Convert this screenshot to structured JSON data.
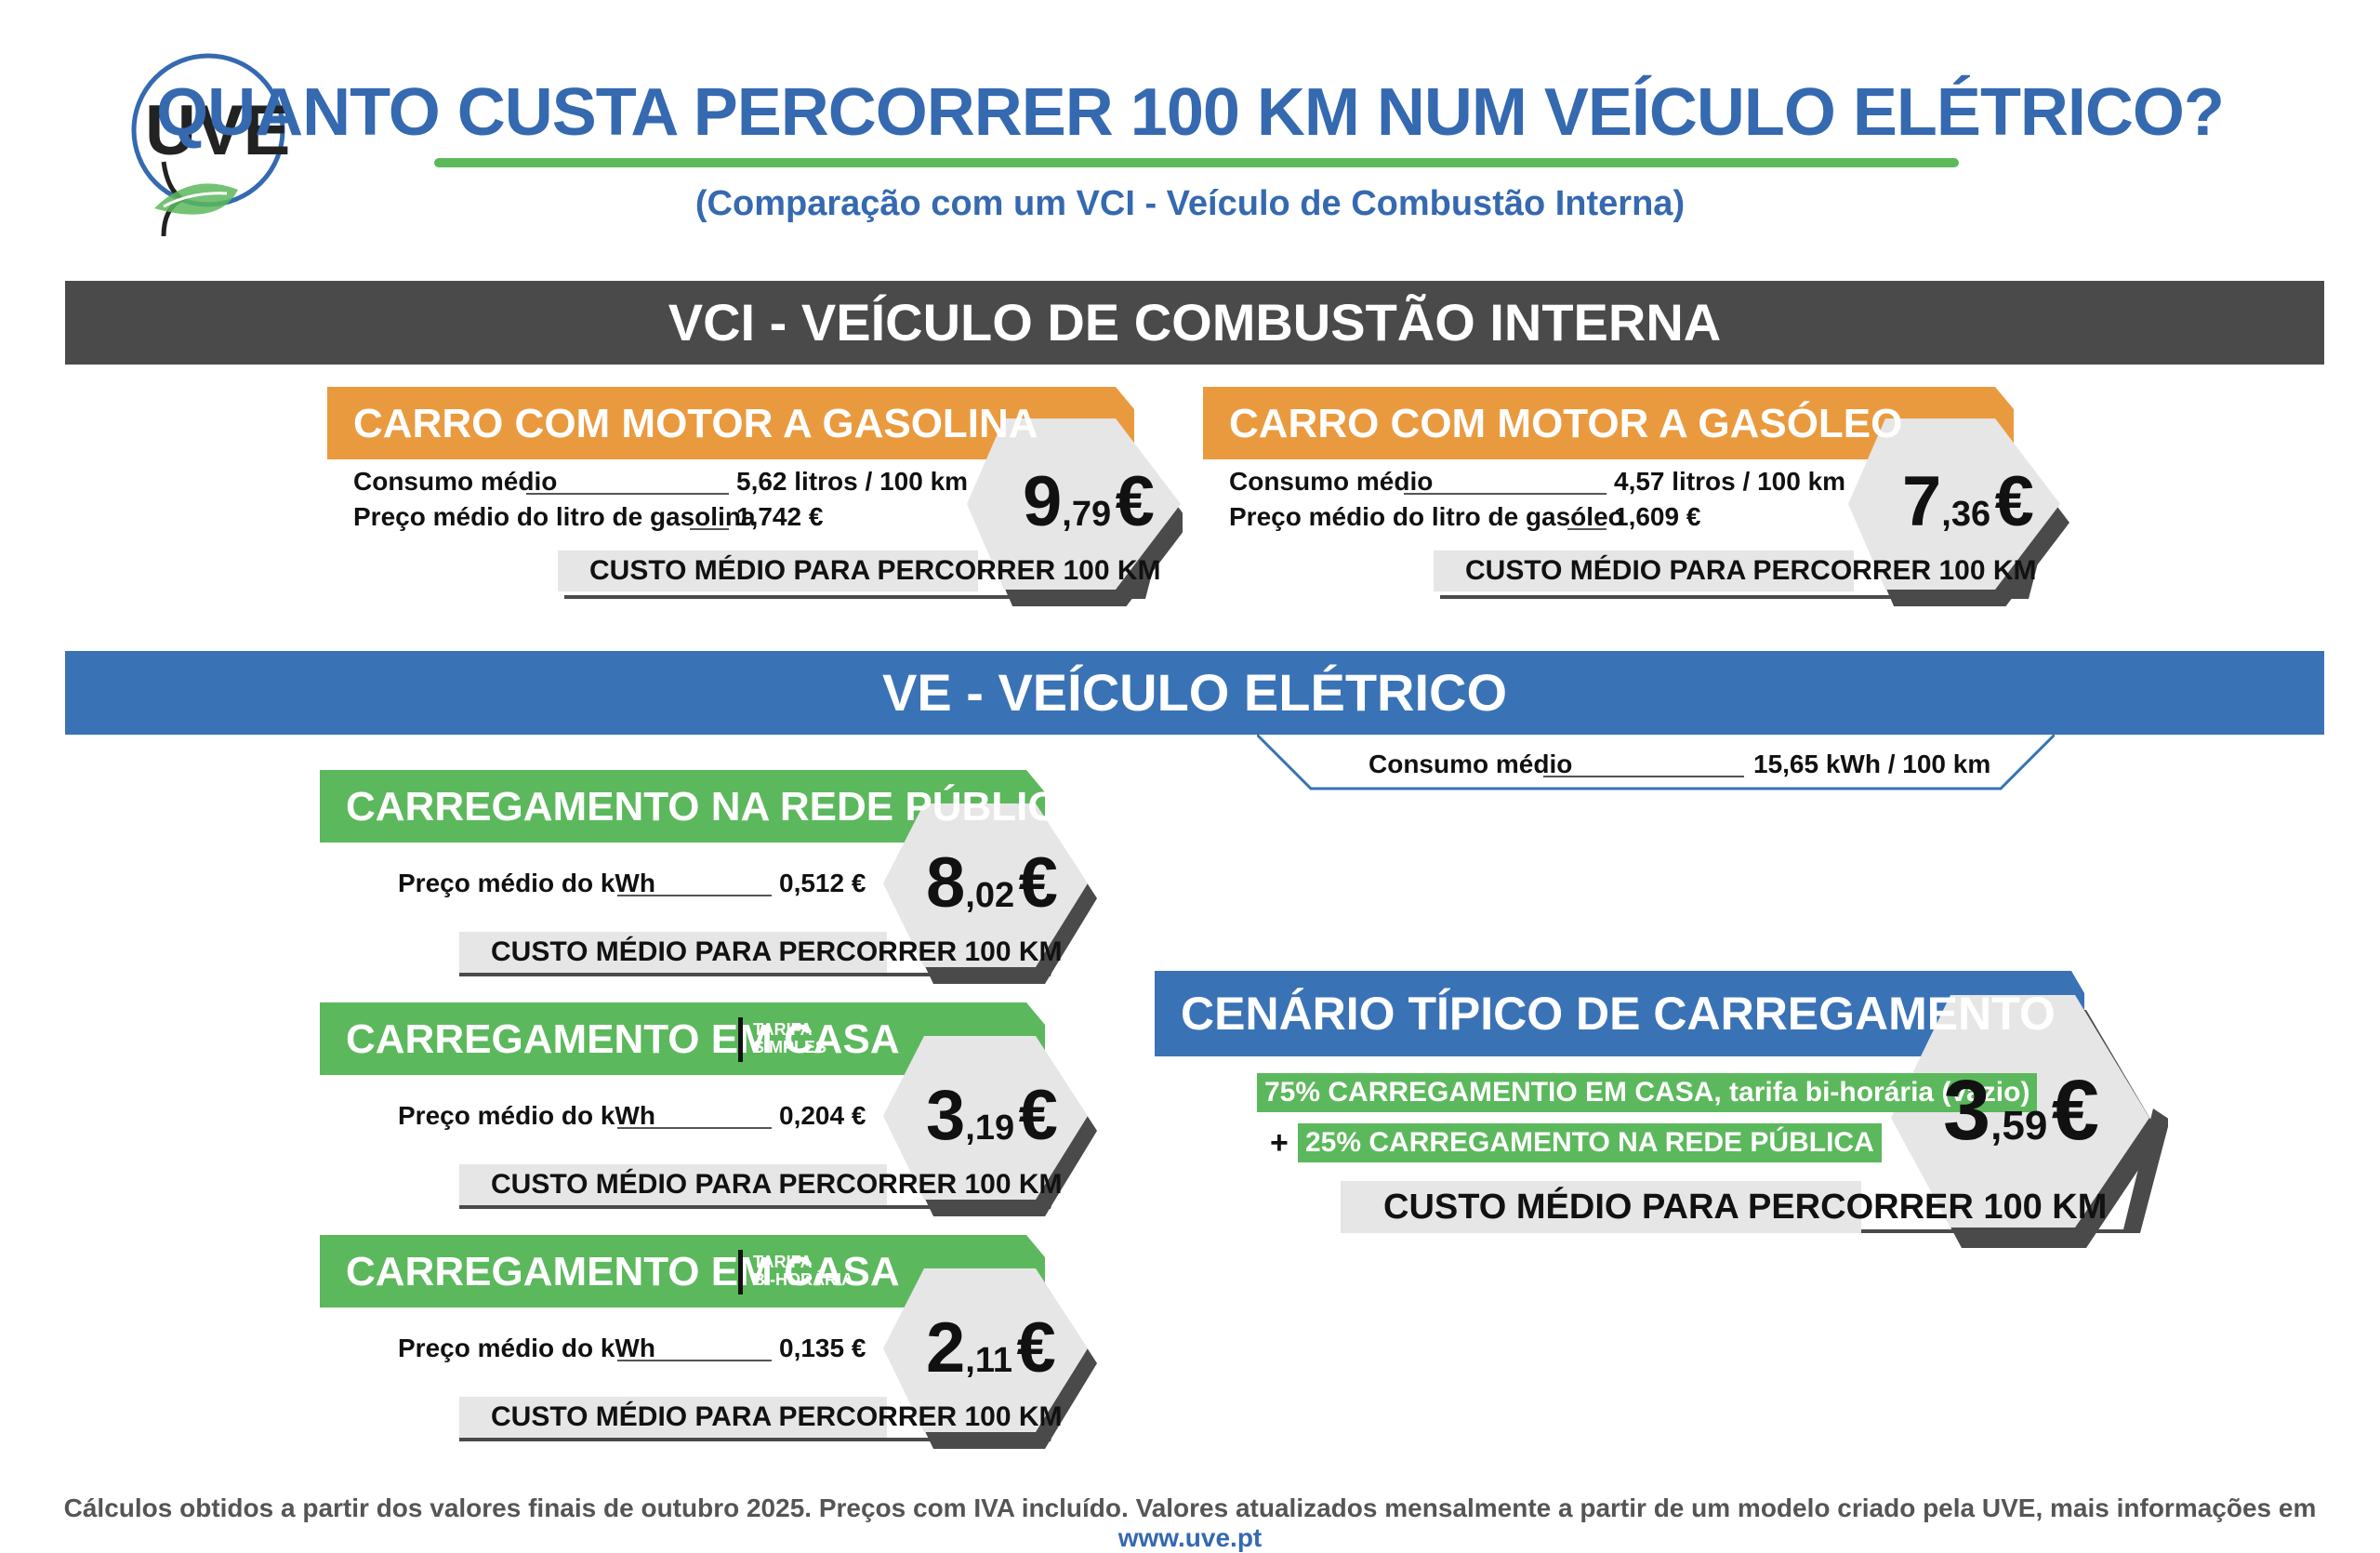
{
  "header": {
    "logo_text": "UVE",
    "title": "QUANTO CUSTA PERCORRER 100 KM NUM VEÍCULO ELÉTRICO?",
    "subtitle": "(Comparação com um VCI - Veículo de Combustão Interna)"
  },
  "vci": {
    "section_title": "VCI - VEÍCULO DE COMBUSTÃO INTERNA",
    "gasolina": {
      "title": "CARRO COM MOTOR A GASOLINA",
      "consumo_label": "Consumo médio",
      "consumo_value": "5,62 litros / 100 km",
      "preco_label": "Preço médio do litro de gasolina",
      "preco_value": "1,742 €",
      "cost_label": "CUSTO MÉDIO PARA PERCORRER 100 KM",
      "cost_int": "9",
      "cost_dec": ",79",
      "cost_currency": "€"
    },
    "gasoleo": {
      "title": "CARRO COM MOTOR A GASÓLEO",
      "consumo_label": "Consumo médio",
      "consumo_value": "4,57 litros / 100 km",
      "preco_label": "Preço médio do litro de gasóleo",
      "preco_value": "1,609 €",
      "cost_label": "CUSTO MÉDIO PARA PERCORRER 100 KM",
      "cost_int": "7",
      "cost_dec": ",36",
      "cost_currency": "€"
    }
  },
  "ve": {
    "section_title": "VE - VEÍCULO ELÉTRICO",
    "consumo_label": "Consumo médio",
    "consumo_value": "15,65 kWh / 100 km",
    "publica": {
      "title": "CARREGAMENTO NA REDE PÚBLICA",
      "preco_label": "Preço médio do kWh",
      "preco_value": "0,512 €",
      "cost_label": "CUSTO MÉDIO PARA PERCORRER 100 KM",
      "cost_int": "8",
      "cost_dec": ",02",
      "cost_currency": "€"
    },
    "casa_simples": {
      "title": "CARREGAMENTO EM CASA",
      "tarifa_line1": "TARIFA",
      "tarifa_line2": "SIMPLES",
      "preco_label": "Preço médio do kWh",
      "preco_value": "0,204 €",
      "cost_label": "CUSTO MÉDIO PARA PERCORRER 100 KM",
      "cost_int": "3",
      "cost_dec": ",19",
      "cost_currency": "€"
    },
    "casa_bihoraria": {
      "title": "CARREGAMENTO EM CASA",
      "tarifa_line1": "TARIFA",
      "tarifa_line2": "BI-HORÁRIA",
      "preco_label": "Preço médio do kWh",
      "preco_value": "0,135 €",
      "cost_label": "CUSTO MÉDIO PARA PERCORRER 100 KM",
      "cost_int": "2",
      "cost_dec": ",11",
      "cost_currency": "€"
    },
    "cenario": {
      "title": "CENÁRIO TÍPICO DE CARREGAMENTO",
      "line1": "75% CARREGAMENTIO EM CASA, tarifa bi-horária (vazio)",
      "plus": "+",
      "line2": "25% CARREGAMENTO NA REDE PÚBLICA",
      "cost_label": "CUSTO MÉDIO PARA PERCORRER 100 KM",
      "cost_int": "3",
      "cost_dec": ",59",
      "cost_currency": "€"
    }
  },
  "footer": {
    "text": "Cálculos obtidos a partir dos valores finais de outubro 2025. Preços com IVA incluído. Valores atualizados mensalmente a partir de um modelo criado pela UVE, mais informações em ",
    "link": "www.uve.pt"
  },
  "colors": {
    "brand_blue": "#3569b0",
    "green": "#5cb85c",
    "orange": "#ea9a3e",
    "dark_gray": "#4a4a4a"
  }
}
